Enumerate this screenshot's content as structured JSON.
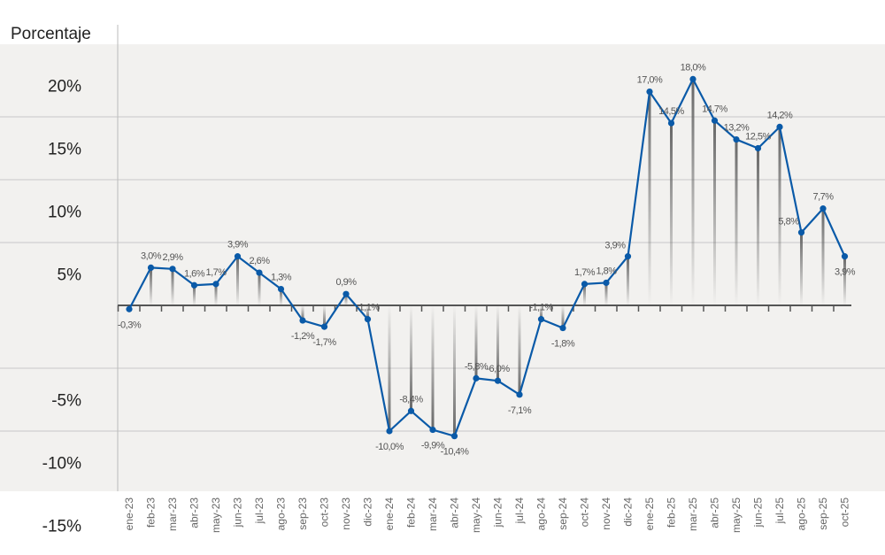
{
  "chart_data": {
    "type": "line",
    "title": "",
    "ylabel": "Porcentaje",
    "xlabel": "",
    "y_tick_labels": [
      "20%",
      "15%",
      "10%",
      "5%",
      "-5%",
      "-10%",
      "-15%"
    ],
    "y_tick_values": [
      20,
      15,
      10,
      5,
      -5,
      -10,
      -15
    ],
    "ylim": [
      -15,
      20
    ],
    "grid": true,
    "colors": {
      "line": "#0a5aa8",
      "drop_line": "#777777",
      "background": "#f2f1ef",
      "grid": "#c8c8c8"
    },
    "categories": [
      "ene-23",
      "feb-23",
      "mar-23",
      "abr-23",
      "may-23",
      "jun-23",
      "jul-23",
      "ago-23",
      "sep-23",
      "oct-23",
      "nov-23",
      "dic-23",
      "ene-24",
      "feb-24",
      "mar-24",
      "abr-24",
      "may-24",
      "jun-24",
      "jul-24",
      "ago-24",
      "sep-24",
      "oct-24",
      "nov-24",
      "dic-24",
      "ene-25",
      "feb-25",
      "mar-25",
      "abr-25",
      "may-25",
      "jun-25",
      "jul-25",
      "ago-25",
      "sep-25",
      "oct-25"
    ],
    "values": [
      -0.3,
      3.0,
      2.9,
      1.6,
      1.7,
      3.9,
      2.6,
      1.3,
      -1.2,
      -1.7,
      0.9,
      -1.1,
      -10.0,
      -8.4,
      -9.9,
      -10.4,
      -5.8,
      -6.0,
      -7.1,
      -1.1,
      -1.8,
      1.7,
      1.8,
      3.9,
      17.0,
      14.5,
      18.0,
      14.7,
      13.2,
      12.5,
      14.2,
      5.8,
      7.7,
      3.9
    ],
    "data_labels": [
      "-0,3%",
      "3,0%",
      "2,9%",
      "1,6%",
      "1,7%",
      "3,9%",
      "2,6%",
      "1,3%",
      "-1,2%",
      "-1,7%",
      "0,9%",
      "-1,1%",
      "-10,0%",
      "-8,4%",
      "-9,9%",
      "-10,4%",
      "-5,8%",
      "-6,0%",
      "-7,1%",
      "-1,1%",
      "-1,8%",
      "1,7%",
      "1,8%",
      "3,9%",
      "17,0%",
      "14,5%",
      "18,0%",
      "14,7%",
      "13,2%",
      "12,5%",
      "14,2%",
      "5,8%",
      "7,7%",
      "3,9%"
    ],
    "label_positions": [
      "below",
      "above",
      "above",
      "above",
      "above",
      "above",
      "above",
      "above",
      "below",
      "below",
      "above",
      "above",
      "below",
      "above",
      "below",
      "below",
      "above",
      "above",
      "below",
      "above",
      "below",
      "above",
      "above",
      "left",
      "above",
      "above",
      "above",
      "above",
      "above",
      "above",
      "above",
      "left",
      "above",
      "below"
    ]
  }
}
